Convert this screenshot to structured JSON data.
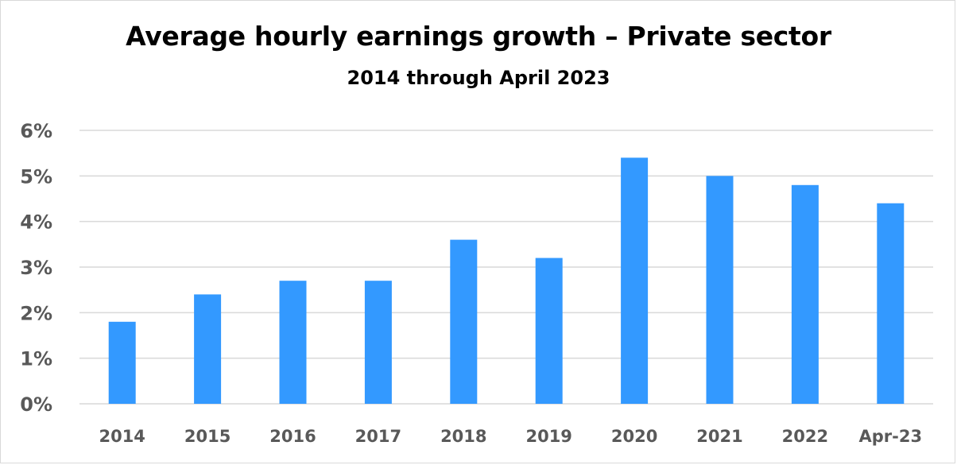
{
  "chart_data": {
    "type": "bar",
    "title": "Average hourly earnings growth – Private sector",
    "subtitle": "2014 through April 2023",
    "categories": [
      "2014",
      "2015",
      "2016",
      "2017",
      "2018",
      "2019",
      "2020",
      "2021",
      "2022",
      "Apr-23"
    ],
    "values": [
      1.8,
      2.4,
      2.7,
      2.7,
      3.6,
      3.2,
      5.4,
      5.0,
      4.8,
      4.4
    ],
    "ylim": [
      0,
      6
    ],
    "yticks": [
      0,
      1,
      2,
      3,
      4,
      5,
      6
    ],
    "ytick_labels": [
      "0%",
      "1%",
      "2%",
      "3%",
      "4%",
      "5%",
      "6%"
    ],
    "grid": true,
    "bar_color": "#3399ff",
    "grid_color": "#d9d9d9"
  }
}
